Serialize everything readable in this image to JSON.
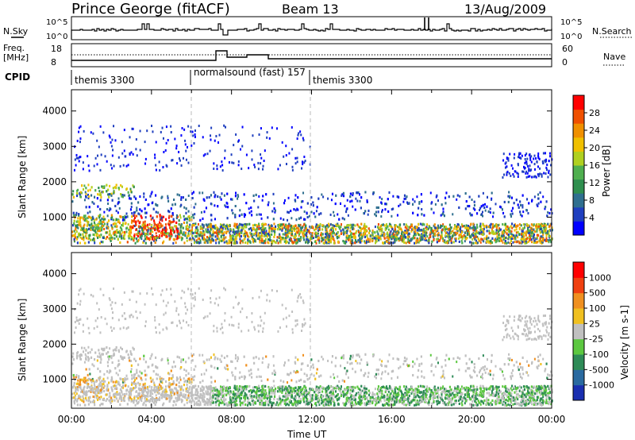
{
  "header": {
    "radar": "Prince George (fitACF)",
    "beam": "Beam 13",
    "date": "13/Aug/2009"
  },
  "sky_panel": {
    "left_label": "N.Sky",
    "right_label": "N.Search",
    "tick_top": "10^5",
    "tick_bottom": "10^0"
  },
  "freq_panel": {
    "left_label_1": "Freq.",
    "left_label_2": "[MHz]",
    "left_tick_top": "18",
    "left_tick_bottom": "8",
    "right_tick_top": "60",
    "right_tick_bottom": "0",
    "right_label": "Nave"
  },
  "cpid_panel": {
    "label": "CPID",
    "segments": [
      {
        "name": "themis 3300",
        "start": 0,
        "end": 6
      },
      {
        "name": "normalsound (fast) 157",
        "start": 6,
        "end": 12
      },
      {
        "name": "themis 3300",
        "start": 12,
        "end": 24
      }
    ]
  },
  "chart_data": [
    {
      "type": "heatmap",
      "name": "power",
      "ylabel": "Slant Range [km]",
      "xlabel": "",
      "xlim": [
        0,
        24
      ],
      "ylim": [
        180,
        4600
      ],
      "yticks": [
        1000,
        2000,
        3000,
        4000
      ],
      "colorbar": {
        "label": "Power [dB]",
        "ticks": [
          "4",
          "8",
          "12",
          "16",
          "20",
          "24",
          "28"
        ],
        "colors": [
          "#0000ff",
          "#1f3fbf",
          "#2f6f8f",
          "#2f8f4f",
          "#4faf4f",
          "#b0d020",
          "#f0c000",
          "#f09000",
          "#f05000",
          "#ff0000"
        ]
      }
    },
    {
      "type": "heatmap",
      "name": "velocity",
      "ylabel": "Slant Range [km]",
      "xlabel": "Time UT",
      "xlim": [
        0,
        24
      ],
      "ylim": [
        180,
        4600
      ],
      "yticks": [
        1000,
        2000,
        3000,
        4000
      ],
      "xticks": [
        "00:00",
        "04:00",
        "08:00",
        "12:00",
        "16:00",
        "20:00",
        "00:00"
      ],
      "colorbar": {
        "label": "Velocity [m s-1]",
        "ticks": [
          "1000",
          "500",
          "100",
          "25",
          "-25",
          "-100",
          "-500",
          "-1000"
        ],
        "colors": [
          "#1a2fb0",
          "#2a6aa0",
          "#2e8b57",
          "#5cc840",
          "#c0c0c0",
          "#f0c020",
          "#f09020",
          "#f04010",
          "#ff0000"
        ]
      }
    }
  ]
}
